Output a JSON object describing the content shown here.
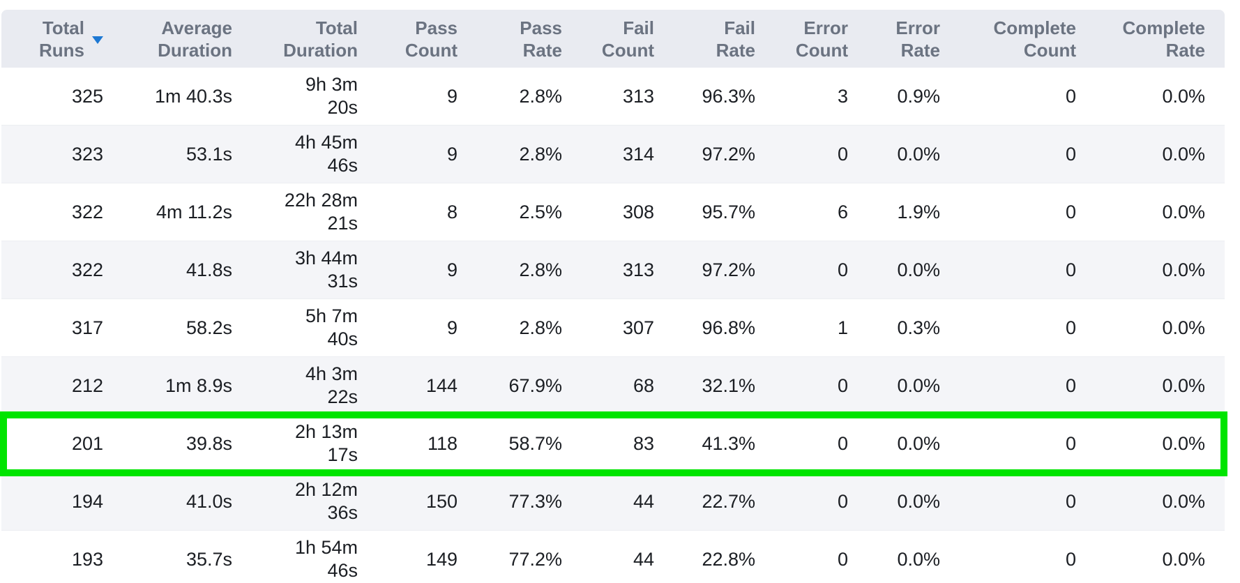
{
  "table": {
    "columns": [
      {
        "key": "total_runs",
        "label": "Total Runs"
      },
      {
        "key": "average_duration",
        "label": "Average Duration"
      },
      {
        "key": "total_duration",
        "label": "Total Duration"
      },
      {
        "key": "pass_count",
        "label": "Pass Count"
      },
      {
        "key": "pass_rate",
        "label": "Pass Rate"
      },
      {
        "key": "fail_count",
        "label": "Fail Count"
      },
      {
        "key": "fail_rate",
        "label": "Fail Rate"
      },
      {
        "key": "error_count",
        "label": "Error Count"
      },
      {
        "key": "error_rate",
        "label": "Error Rate"
      },
      {
        "key": "complete_count",
        "label": "Complete Count"
      },
      {
        "key": "complete_rate",
        "label": "Complete Rate"
      }
    ],
    "sort": {
      "column": "total_runs",
      "direction": "descending"
    },
    "rows": [
      {
        "total_runs": "325",
        "average_duration": "1m 40.3s",
        "total_duration": "9h 3m 20s",
        "pass_count": "9",
        "pass_rate": "2.8%",
        "fail_count": "313",
        "fail_rate": "96.3%",
        "error_count": "3",
        "error_rate": "0.9%",
        "complete_count": "0",
        "complete_rate": "0.0%"
      },
      {
        "total_runs": "323",
        "average_duration": "53.1s",
        "total_duration": "4h 45m 46s",
        "pass_count": "9",
        "pass_rate": "2.8%",
        "fail_count": "314",
        "fail_rate": "97.2%",
        "error_count": "0",
        "error_rate": "0.0%",
        "complete_count": "0",
        "complete_rate": "0.0%"
      },
      {
        "total_runs": "322",
        "average_duration": "4m 11.2s",
        "total_duration": "22h 28m 21s",
        "pass_count": "8",
        "pass_rate": "2.5%",
        "fail_count": "308",
        "fail_rate": "95.7%",
        "error_count": "6",
        "error_rate": "1.9%",
        "complete_count": "0",
        "complete_rate": "0.0%"
      },
      {
        "total_runs": "322",
        "average_duration": "41.8s",
        "total_duration": "3h 44m 31s",
        "pass_count": "9",
        "pass_rate": "2.8%",
        "fail_count": "313",
        "fail_rate": "97.2%",
        "error_count": "0",
        "error_rate": "0.0%",
        "complete_count": "0",
        "complete_rate": "0.0%"
      },
      {
        "total_runs": "317",
        "average_duration": "58.2s",
        "total_duration": "5h 7m 40s",
        "pass_count": "9",
        "pass_rate": "2.8%",
        "fail_count": "307",
        "fail_rate": "96.8%",
        "error_count": "1",
        "error_rate": "0.3%",
        "complete_count": "0",
        "complete_rate": "0.0%"
      },
      {
        "total_runs": "212",
        "average_duration": "1m 8.9s",
        "total_duration": "4h 3m 22s",
        "pass_count": "144",
        "pass_rate": "67.9%",
        "fail_count": "68",
        "fail_rate": "32.1%",
        "error_count": "0",
        "error_rate": "0.0%",
        "complete_count": "0",
        "complete_rate": "0.0%"
      },
      {
        "total_runs": "201",
        "average_duration": "39.8s",
        "total_duration": "2h 13m 17s",
        "pass_count": "118",
        "pass_rate": "58.7%",
        "fail_count": "83",
        "fail_rate": "41.3%",
        "error_count": "0",
        "error_rate": "0.0%",
        "complete_count": "0",
        "complete_rate": "0.0%"
      },
      {
        "total_runs": "194",
        "average_duration": "41.0s",
        "total_duration": "2h 12m 36s",
        "pass_count": "150",
        "pass_rate": "77.3%",
        "fail_count": "44",
        "fail_rate": "22.7%",
        "error_count": "0",
        "error_rate": "0.0%",
        "complete_count": "0",
        "complete_rate": "0.0%"
      },
      {
        "total_runs": "193",
        "average_duration": "35.7s",
        "total_duration": "1h 54m 46s",
        "pass_count": "149",
        "pass_rate": "77.2%",
        "fail_count": "44",
        "fail_rate": "22.8%",
        "error_count": "0",
        "error_rate": "0.0%",
        "complete_count": "0",
        "complete_rate": "0.0%"
      }
    ],
    "highlight": {
      "row_index": 6,
      "color": "#00e400"
    }
  },
  "colors": {
    "header_bg": "#e9ebf1",
    "header_text": "#6b7381",
    "body_text": "#1b1e23",
    "row_alt_bg": "#f4f5f8",
    "sort_arrow": "#1d78d3",
    "highlight_green": "#00e400"
  }
}
